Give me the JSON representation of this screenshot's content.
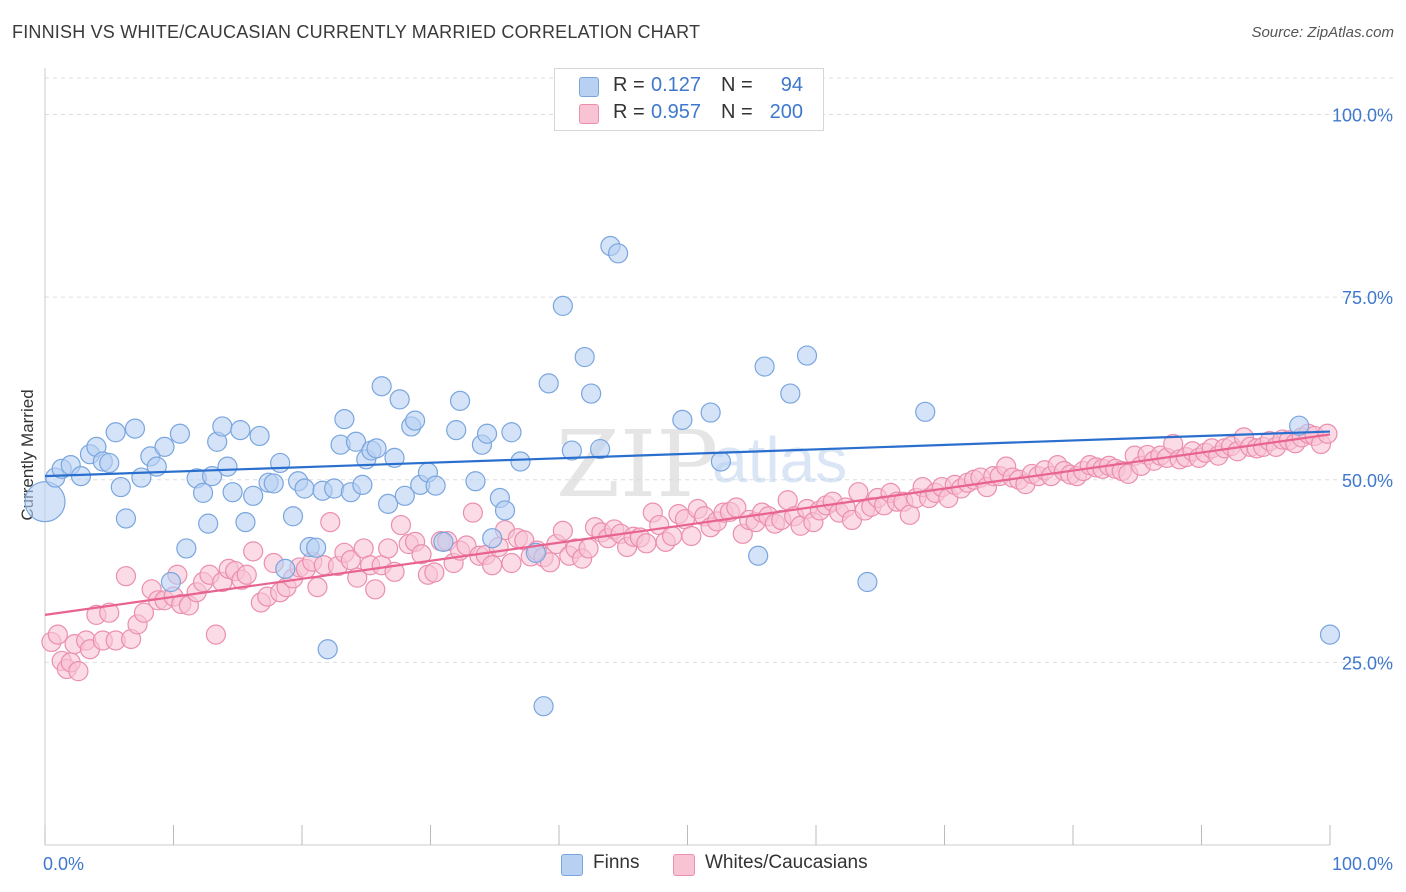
{
  "header": {
    "title": "FINNISH VS WHITE/CAUCASIAN CURRENTLY MARRIED CORRELATION CHART",
    "source": "Source: ZipAtlas.com"
  },
  "watermark": {
    "part1": "ZIP",
    "part2": "atlas"
  },
  "legend_top": {
    "r_label": "R =",
    "n_label": "N =",
    "rows": [
      {
        "r": "0.127",
        "n": "94"
      },
      {
        "r": "0.957",
        "n": "200"
      }
    ]
  },
  "colors": {
    "finns_fill": "#b8d1f3",
    "finns_stroke": "#7aa6de",
    "finns_line": "#2b6fce",
    "whites_fill": "#f8c3d3",
    "whites_stroke": "#eb8fae",
    "whites_line": "#e8638f",
    "tick_label": "#3f78cc"
  },
  "chart_data": {
    "type": "scatter",
    "title": "FINNISH VS WHITE/CAUCASIAN CURRENTLY MARRIED CORRELATION CHART",
    "xlabel": "",
    "ylabel": "Currently Married",
    "xlim": [
      0,
      100
    ],
    "ylim": [
      0,
      105
    ],
    "x_tick_labels": [
      "0.0%",
      "100.0%"
    ],
    "y_ticks": [
      25,
      50,
      75,
      100
    ],
    "y_tick_labels": [
      "25.0%",
      "50.0%",
      "75.0%",
      "100.0%"
    ],
    "grid": true,
    "legend_position": "top-center",
    "series": [
      {
        "name": "Finns",
        "r": 0.127,
        "n": 94,
        "trend": {
          "x": [
            0,
            100
          ],
          "y": [
            50.5,
            56.6
          ]
        },
        "points": [
          [
            0,
            47
          ],
          [
            0.8,
            50.3
          ],
          [
            1.3,
            51.5
          ],
          [
            2,
            52
          ],
          [
            2.8,
            50.5
          ],
          [
            3.5,
            53.5
          ],
          [
            4,
            54.5
          ],
          [
            4.5,
            52.5
          ],
          [
            5,
            52.3
          ],
          [
            5.5,
            56.5
          ],
          [
            5.9,
            49
          ],
          [
            6.3,
            44.7
          ],
          [
            7,
            57
          ],
          [
            7.5,
            50.3
          ],
          [
            8.2,
            53.2
          ],
          [
            8.7,
            51.8
          ],
          [
            9.3,
            54.5
          ],
          [
            9.8,
            36
          ],
          [
            10.5,
            56.3
          ],
          [
            11,
            40.6
          ],
          [
            11.8,
            50.2
          ],
          [
            12.3,
            48.2
          ],
          [
            12.7,
            44
          ],
          [
            13,
            50.5
          ],
          [
            13.4,
            55.2
          ],
          [
            13.8,
            57.3
          ],
          [
            14.2,
            51.8
          ],
          [
            14.6,
            48.3
          ],
          [
            15.2,
            56.8
          ],
          [
            15.6,
            44.2
          ],
          [
            16.2,
            47.8
          ],
          [
            16.7,
            56
          ],
          [
            17.4,
            49.6
          ],
          [
            17.8,
            49.5
          ],
          [
            18.3,
            52.3
          ],
          [
            18.7,
            37.8
          ],
          [
            19.3,
            45
          ],
          [
            19.7,
            49.8
          ],
          [
            20.2,
            48.8
          ],
          [
            20.6,
            40.8
          ],
          [
            21.1,
            40.7
          ],
          [
            21.6,
            48.5
          ],
          [
            22,
            26.8
          ],
          [
            22.5,
            48.8
          ],
          [
            23,
            54.8
          ],
          [
            23.3,
            58.3
          ],
          [
            23.8,
            48.3
          ],
          [
            24.2,
            55.2
          ],
          [
            24.7,
            49.3
          ],
          [
            25,
            52.8
          ],
          [
            25.4,
            54
          ],
          [
            25.8,
            54.3
          ],
          [
            26.2,
            62.8
          ],
          [
            26.7,
            46.7
          ],
          [
            27.2,
            53
          ],
          [
            27.6,
            61
          ],
          [
            28,
            47.8
          ],
          [
            28.5,
            57.3
          ],
          [
            28.8,
            58.1
          ],
          [
            29.2,
            49.3
          ],
          [
            29.8,
            51
          ],
          [
            30.4,
            49.2
          ],
          [
            31,
            41.5
          ],
          [
            32,
            56.8
          ],
          [
            32.3,
            60.8
          ],
          [
            33.5,
            49.8
          ],
          [
            34,
            54.8
          ],
          [
            34.4,
            56.3
          ],
          [
            34.8,
            42
          ],
          [
            35.4,
            47.5
          ],
          [
            35.8,
            45.8
          ],
          [
            36.3,
            56.5
          ],
          [
            37,
            52.5
          ],
          [
            38.2,
            40
          ],
          [
            38.8,
            19
          ],
          [
            39.2,
            63.2
          ],
          [
            40.3,
            73.8
          ],
          [
            41,
            54
          ],
          [
            42,
            66.8
          ],
          [
            42.5,
            61.8
          ],
          [
            43.2,
            54.2
          ],
          [
            44,
            82
          ],
          [
            44.6,
            81
          ],
          [
            49.6,
            58.2
          ],
          [
            51.8,
            59.2
          ],
          [
            52.6,
            52.5
          ],
          [
            55.5,
            39.6
          ],
          [
            56,
            65.5
          ],
          [
            58,
            61.8
          ],
          [
            59.3,
            67
          ],
          [
            64,
            36
          ],
          [
            68.5,
            59.3
          ],
          [
            97.6,
            57.4
          ],
          [
            100,
            28.8
          ]
        ]
      },
      {
        "name": "Whites/Caucasians",
        "r": 0.957,
        "n": 200,
        "trend": {
          "x": [
            0,
            100
          ],
          "y": [
            31.5,
            56.2
          ]
        },
        "points": [
          [
            0.5,
            27.8
          ],
          [
            1,
            28.8
          ],
          [
            1.3,
            25.2
          ],
          [
            1.7,
            24.1
          ],
          [
            2,
            25
          ],
          [
            2.3,
            27.5
          ],
          [
            2.6,
            23.8
          ],
          [
            3.2,
            28
          ],
          [
            3.5,
            26.8
          ],
          [
            4,
            31.5
          ],
          [
            4.5,
            28
          ],
          [
            5,
            31.8
          ],
          [
            5.5,
            28
          ],
          [
            6.3,
            36.8
          ],
          [
            6.7,
            28.2
          ],
          [
            7.2,
            30.2
          ],
          [
            7.7,
            31.8
          ],
          [
            8.3,
            35
          ],
          [
            8.8,
            33.5
          ],
          [
            9.3,
            33.5
          ],
          [
            10,
            34
          ],
          [
            10.3,
            37
          ],
          [
            10.6,
            33
          ],
          [
            11.2,
            32.8
          ],
          [
            11.8,
            34.6
          ],
          [
            12.3,
            36
          ],
          [
            12.8,
            37
          ],
          [
            13.3,
            28.8
          ],
          [
            13.8,
            36
          ],
          [
            14.3,
            37.8
          ],
          [
            14.8,
            37.5
          ],
          [
            15.3,
            36.3
          ],
          [
            15.7,
            37
          ],
          [
            16.2,
            40.2
          ],
          [
            16.8,
            33.2
          ],
          [
            17.3,
            34
          ],
          [
            17.8,
            38.6
          ],
          [
            18.3,
            34.6
          ],
          [
            18.8,
            35.3
          ],
          [
            19.3,
            36.5
          ],
          [
            19.8,
            38
          ],
          [
            20.3,
            37.8
          ],
          [
            20.8,
            38.8
          ],
          [
            21.2,
            35.3
          ],
          [
            21.7,
            38.3
          ],
          [
            22.2,
            44.2
          ],
          [
            22.8,
            38.2
          ],
          [
            23.3,
            40
          ],
          [
            23.8,
            39
          ],
          [
            24.3,
            36.6
          ],
          [
            24.8,
            40.6
          ],
          [
            25.3,
            38.3
          ],
          [
            25.7,
            35
          ],
          [
            26.2,
            38.3
          ],
          [
            26.7,
            40.6
          ],
          [
            27.2,
            37.4
          ],
          [
            27.7,
            43.8
          ],
          [
            28.3,
            41.2
          ],
          [
            28.8,
            41.5
          ],
          [
            29.3,
            39.8
          ],
          [
            29.8,
            37
          ],
          [
            30.3,
            37.3
          ],
          [
            30.8,
            41.6
          ],
          [
            31.3,
            41.6
          ],
          [
            31.8,
            38.6
          ],
          [
            32.3,
            40.3
          ],
          [
            32.8,
            41
          ],
          [
            33.3,
            45.5
          ],
          [
            33.8,
            39.6
          ],
          [
            34.3,
            39.7
          ],
          [
            34.8,
            38.3
          ],
          [
            35.3,
            40.8
          ],
          [
            35.8,
            43.1
          ],
          [
            36.3,
            38.6
          ],
          [
            36.8,
            42
          ],
          [
            37.3,
            41.7
          ],
          [
            37.8,
            39.5
          ],
          [
            38.3,
            40.3
          ],
          [
            38.8,
            39.4
          ],
          [
            39.3,
            38.7
          ],
          [
            39.8,
            41.2
          ],
          [
            40.3,
            43
          ],
          [
            40.8,
            39.6
          ],
          [
            41.3,
            40.6
          ],
          [
            41.8,
            39.2
          ],
          [
            42.3,
            40.6
          ],
          [
            42.8,
            43.5
          ],
          [
            43.3,
            42.8
          ],
          [
            43.8,
            42
          ],
          [
            44.3,
            43.2
          ],
          [
            44.8,
            42.6
          ],
          [
            45.3,
            40.8
          ],
          [
            45.8,
            42.2
          ],
          [
            46.3,
            42.1
          ],
          [
            46.8,
            41.3
          ],
          [
            47.3,
            45.5
          ],
          [
            47.8,
            43.8
          ],
          [
            48.3,
            41.5
          ],
          [
            48.8,
            42.3
          ],
          [
            49.3,
            45.3
          ],
          [
            49.8,
            44.6
          ],
          [
            50.3,
            42.3
          ],
          [
            50.8,
            46
          ],
          [
            51.3,
            45
          ],
          [
            51.8,
            43.5
          ],
          [
            52.3,
            44.3
          ],
          [
            52.8,
            45.5
          ],
          [
            53.3,
            45.6
          ],
          [
            53.8,
            46.2
          ],
          [
            54.3,
            42.6
          ],
          [
            54.8,
            44.5
          ],
          [
            55.3,
            44.2
          ],
          [
            55.8,
            45.5
          ],
          [
            56.3,
            45
          ],
          [
            56.8,
            44
          ],
          [
            57.3,
            44.5
          ],
          [
            57.8,
            47.2
          ],
          [
            58.3,
            45
          ],
          [
            58.8,
            43.7
          ],
          [
            59.3,
            46
          ],
          [
            59.8,
            44.2
          ],
          [
            60.3,
            45.8
          ],
          [
            60.8,
            46.5
          ],
          [
            61.3,
            47
          ],
          [
            61.8,
            45.5
          ],
          [
            62.3,
            46.2
          ],
          [
            62.8,
            44.5
          ],
          [
            63.3,
            48.3
          ],
          [
            63.8,
            45.8
          ],
          [
            64.3,
            46.3
          ],
          [
            64.8,
            47.5
          ],
          [
            65.3,
            46.5
          ],
          [
            65.8,
            48.2
          ],
          [
            66.3,
            47
          ],
          [
            66.8,
            47
          ],
          [
            67.3,
            45.2
          ],
          [
            67.8,
            47.5
          ],
          [
            68.3,
            49
          ],
          [
            68.8,
            47.5
          ],
          [
            69.3,
            48.2
          ],
          [
            69.8,
            49
          ],
          [
            70.3,
            47.5
          ],
          [
            70.8,
            49.3
          ],
          [
            71.3,
            48.8
          ],
          [
            71.8,
            49.6
          ],
          [
            72.3,
            50
          ],
          [
            72.8,
            50.3
          ],
          [
            73.3,
            49
          ],
          [
            73.8,
            50.5
          ],
          [
            74.3,
            50.5
          ],
          [
            74.8,
            51.8
          ],
          [
            75.3,
            50.3
          ],
          [
            75.8,
            50
          ],
          [
            76.3,
            49.4
          ],
          [
            76.8,
            50.8
          ],
          [
            77.3,
            50.5
          ],
          [
            77.8,
            51.3
          ],
          [
            78.3,
            50.5
          ],
          [
            78.8,
            52
          ],
          [
            79.3,
            51.2
          ],
          [
            79.8,
            50.7
          ],
          [
            80.3,
            50.5
          ],
          [
            80.8,
            51.2
          ],
          [
            81.3,
            52
          ],
          [
            81.8,
            51.7
          ],
          [
            82.3,
            51.5
          ],
          [
            82.8,
            51.9
          ],
          [
            83.3,
            51.5
          ],
          [
            83.8,
            51.2
          ],
          [
            84.3,
            50.8
          ],
          [
            84.8,
            53.3
          ],
          [
            85.3,
            51.9
          ],
          [
            85.8,
            53.4
          ],
          [
            86.3,
            52.6
          ],
          [
            86.8,
            53.3
          ],
          [
            87.3,
            53
          ],
          [
            87.8,
            54.9
          ],
          [
            88.3,
            52.8
          ],
          [
            88.8,
            53.1
          ],
          [
            89.3,
            53.9
          ],
          [
            89.8,
            53
          ],
          [
            90.3,
            53.7
          ],
          [
            90.8,
            54.3
          ],
          [
            91.3,
            53.3
          ],
          [
            91.8,
            54.3
          ],
          [
            92.3,
            54.6
          ],
          [
            92.8,
            53.9
          ],
          [
            93.3,
            55.8
          ],
          [
            93.8,
            54.5
          ],
          [
            94.3,
            54.3
          ],
          [
            94.8,
            54.5
          ],
          [
            95.3,
            55.3
          ],
          [
            95.8,
            54.5
          ],
          [
            96.3,
            55.5
          ],
          [
            96.8,
            55.4
          ],
          [
            97.3,
            55
          ],
          [
            97.8,
            55.8
          ],
          [
            98.3,
            56.3
          ],
          [
            98.8,
            56
          ],
          [
            99.3,
            54.9
          ],
          [
            99.8,
            56.3
          ]
        ]
      }
    ]
  },
  "legend_bottom": [
    {
      "label": "Finns"
    },
    {
      "label": "Whites/Caucasians"
    }
  ]
}
